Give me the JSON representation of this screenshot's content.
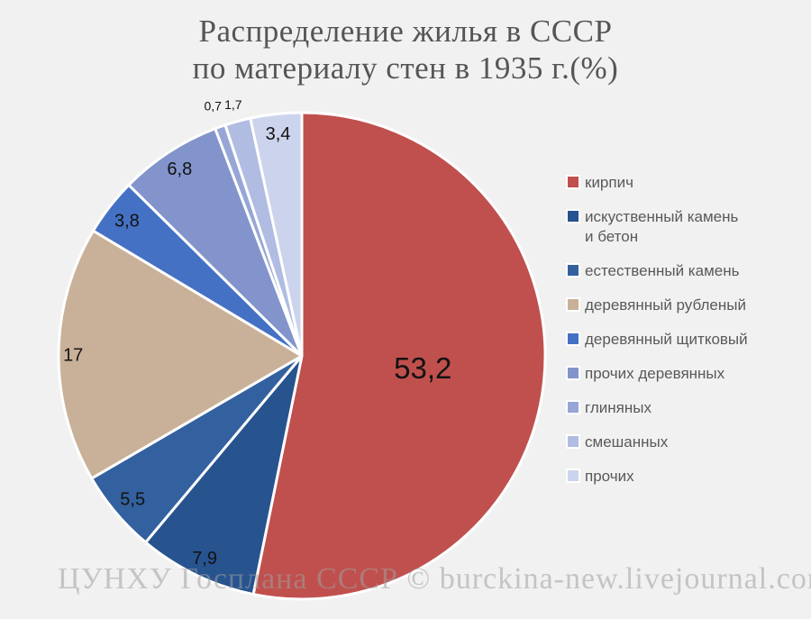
{
  "title": {
    "line1": "Распределение жилья в СССР",
    "line2": "по материалу стен в 1935 г.(%)"
  },
  "watermark": "ЦУНХУ Госплана СССР © burckina-new.livejournal.com",
  "colors": {
    "background": "#F1F1F2",
    "title_text": "#575554",
    "legend_text": "#595959",
    "value_label_text": "#121212",
    "slice_border": "#FFFFFF",
    "watermark_text": "#9E9EA0"
  },
  "chart_data": {
    "type": "pie",
    "title": "Распределение жилья в СССР по материалу стен в 1935 г.(%)",
    "units": "%",
    "start_angle_deg": 0,
    "direction": "clockwise",
    "legend_position": "right",
    "series": [
      {
        "name": "кирпич",
        "value": 53.2,
        "label": "53,2",
        "color": "#C0504D",
        "label_r": 0.5,
        "label_size": 33
      },
      {
        "name": "искуственный камень\nи бетон",
        "value": 7.9,
        "label": "7,9",
        "color": "#27538F",
        "label_r": 0.92,
        "label_size": 20
      },
      {
        "name": "естественный камень",
        "value": 5.5,
        "label": "5,5",
        "color": "#33619F",
        "label_r": 0.91,
        "label_size": 20
      },
      {
        "name": "деревянный рубленый",
        "value": 17,
        "label": "17",
        "color": "#C9B199",
        "label_r": 0.94,
        "label_size": 20
      },
      {
        "name": "деревянный щитковый",
        "value": 3.8,
        "label": "3,8",
        "color": "#4471C4",
        "label_r": 0.91,
        "label_size": 20
      },
      {
        "name": "прочих деревянных",
        "value": 6.8,
        "label": "6,8",
        "color": "#8294CB",
        "label_r": 0.92,
        "label_size": 20
      },
      {
        "name": "глиняных",
        "value": 0.7,
        "label": "0,7",
        "color": "#97A6D6",
        "label_r": 1.09,
        "label_size": 14
      },
      {
        "name": "смешанных",
        "value": 1.7,
        "label": "1,7",
        "color": "#B0BCE2",
        "label_r": 1.07,
        "label_size": 14
      },
      {
        "name": "прочих",
        "value": 3.4,
        "label": "3,4",
        "color": "#CCD4ED",
        "label_r": 0.92,
        "label_size": 20
      }
    ]
  }
}
